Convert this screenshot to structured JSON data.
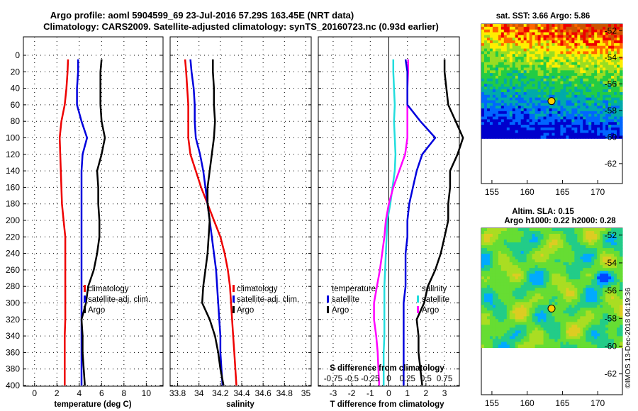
{
  "title": {
    "line1": "Argo profile: aoml 5904599_69 23-Jul-2016 57.29S 163.45E (NRT data)",
    "line2": "Climatology: CARS2009. Satellite-adjusted climatology: synTS_20160723.nc (0.93d earlier)"
  },
  "colors": {
    "climatology": "#ee0000",
    "satellite": "#0000dd",
    "argo": "#000000",
    "salinity_clim": "#ff00ff",
    "salinity_sat": "#22dddd"
  },
  "depth_axis": {
    "ticks": [
      0,
      20,
      40,
      60,
      80,
      100,
      120,
      140,
      160,
      180,
      200,
      220,
      240,
      260,
      280,
      300,
      320,
      340,
      360,
      380,
      400
    ],
    "range": [
      0,
      400
    ]
  },
  "chart_data": [
    {
      "type": "line",
      "name": "temperature",
      "xlabel": "temperature (deg C)",
      "xlim": [
        -1,
        11.5
      ],
      "xticks": [
        0,
        2,
        4,
        6,
        8,
        10
      ],
      "depth": [
        5,
        20,
        40,
        60,
        80,
        100,
        120,
        140,
        160,
        180,
        200,
        220,
        240,
        260,
        280,
        300,
        320,
        340,
        360,
        380,
        400
      ],
      "legend": [
        "climatology",
        "satellite-adj. clim.",
        "Argo"
      ],
      "series": [
        {
          "name": "climatology",
          "values": [
            3.0,
            2.95,
            2.85,
            2.7,
            2.4,
            2.25,
            2.3,
            2.35,
            2.4,
            2.45,
            2.6,
            2.75,
            2.75,
            2.75,
            2.75,
            2.75,
            2.75,
            2.7,
            2.7,
            2.7,
            2.7
          ]
        },
        {
          "name": "satellite-adj. clim.",
          "values": [
            3.9,
            3.9,
            3.8,
            3.8,
            4.2,
            4.7,
            4.3,
            4.2,
            4.2,
            4.2,
            4.2,
            4.2,
            4.2,
            4.2,
            4.2,
            4.2,
            4.2,
            4.2,
            4.2,
            4.2,
            4.2
          ]
        },
        {
          "name": "Argo",
          "values": [
            6.0,
            5.9,
            5.9,
            5.9,
            6.0,
            6.3,
            6.0,
            5.6,
            5.7,
            5.7,
            5.8,
            5.8,
            5.6,
            5.3,
            4.8,
            4.6,
            4.2,
            4.3,
            4.3,
            4.4,
            4.5
          ]
        }
      ]
    },
    {
      "type": "line",
      "name": "salinity",
      "xlabel": "salinity",
      "xlim": [
        33.73,
        35.05
      ],
      "xticks": [
        33.8,
        34,
        34.2,
        34.4,
        34.6,
        34.8,
        35
      ],
      "xtick_labels": [
        "33.8",
        "34",
        "34.2",
        "34.4",
        "34.6",
        "34.8",
        "35"
      ],
      "depth": [
        5,
        20,
        40,
        60,
        80,
        100,
        120,
        140,
        160,
        180,
        200,
        220,
        240,
        260,
        280,
        300,
        320,
        340,
        360,
        380,
        400
      ],
      "legend": [
        "climatology",
        "satellite-adj. clim.",
        "Argo"
      ],
      "series": [
        {
          "name": "climatology",
          "values": [
            33.87,
            33.88,
            33.89,
            33.9,
            33.9,
            33.9,
            33.92,
            33.97,
            34.02,
            34.08,
            34.14,
            34.2,
            34.24,
            34.27,
            34.29,
            34.3,
            34.31,
            34.32,
            34.33,
            34.34,
            34.35
          ]
        },
        {
          "name": "satellite-adj. clim.",
          "values": [
            33.92,
            33.93,
            33.95,
            33.96,
            33.96,
            33.97,
            34.01,
            34.04,
            34.06,
            34.08,
            34.1,
            34.12,
            34.14,
            34.16,
            34.17,
            34.18,
            34.19,
            34.2,
            34.2,
            34.21,
            34.22
          ]
        },
        {
          "name": "Argo",
          "values": [
            34.13,
            34.13,
            34.14,
            34.14,
            34.15,
            34.14,
            34.12,
            34.1,
            34.08,
            34.08,
            34.1,
            34.09,
            34.08,
            34.06,
            34.04,
            34.03,
            34.1,
            34.15,
            34.18,
            34.2,
            34.23
          ]
        }
      ]
    },
    {
      "type": "line",
      "name": "difference",
      "xlabel": "T difference from climatology",
      "xlim": [
        -3.8,
        3.8
      ],
      "xticks": [
        -3,
        -2,
        -1,
        0,
        1,
        2,
        3
      ],
      "top_xlabel": "S difference from climatology",
      "top_xticks": [
        "-0.75",
        "-0.5",
        "-0.25",
        "0",
        "0.25",
        "0.5",
        "0.75"
      ],
      "depth": [
        5,
        20,
        40,
        60,
        80,
        100,
        120,
        140,
        160,
        180,
        200,
        220,
        240,
        260,
        280,
        300,
        320,
        340,
        360,
        380,
        400
      ],
      "legend_left": [
        "temperature",
        "satellite",
        "Argo"
      ],
      "legend_right": [
        "salinity",
        "satellite",
        "Argo"
      ],
      "series": [
        {
          "name": "T satellite",
          "values": [
            0.9,
            1.0,
            1.0,
            1.0,
            1.7,
            2.5,
            1.8,
            1.5,
            1.3,
            1.1,
            1.0,
            1.0,
            0.9,
            0.9,
            0.9,
            0.8,
            0.8,
            0.8,
            0.8,
            0.8,
            0.8
          ]
        },
        {
          "name": "T Argo",
          "values": [
            3.0,
            3.0,
            3.1,
            3.2,
            3.6,
            4.0,
            3.7,
            3.3,
            3.3,
            3.2,
            3.2,
            3.0,
            2.8,
            2.5,
            2.1,
            1.9,
            1.5,
            1.6,
            1.6,
            1.7,
            1.8
          ]
        },
        {
          "name": "S satellite",
          "values": [
            0.06,
            0.06,
            0.07,
            0.08,
            0.07,
            0.08,
            0.09,
            0.08,
            0.05,
            0.02,
            -0.02,
            -0.03,
            -0.04,
            -0.05,
            -0.06,
            -0.06,
            -0.06,
            -0.06,
            -0.07,
            -0.07,
            -0.07
          ]
        },
        {
          "name": "S Argo",
          "values": [
            0.26,
            0.26,
            0.25,
            0.25,
            0.25,
            0.25,
            0.22,
            0.14,
            0.06,
            0.0,
            -0.04,
            -0.06,
            -0.09,
            -0.12,
            -0.16,
            -0.2,
            -0.2,
            -0.17,
            -0.15,
            -0.14,
            -0.13
          ]
        }
      ]
    },
    {
      "type": "heatmap",
      "name": "sst_map",
      "title": "sat. SST: 3.66 Argo: 5.86",
      "xticks": [
        155,
        160,
        165,
        170
      ],
      "yticks": [
        -52,
        -54,
        -56,
        -58,
        -60,
        -62
      ],
      "xlim": [
        153.5,
        173.5
      ],
      "ylim": [
        -63.5,
        -51.5
      ],
      "argo_position": [
        163.45,
        -57.29
      ]
    },
    {
      "type": "heatmap",
      "name": "sla_map",
      "title": "Altim. SLA: 0.15",
      "subtitle": "Argo h1000: 0.22 h2000: 0.28",
      "xticks": [
        155,
        160,
        165,
        170
      ],
      "yticks": [
        -52,
        -54,
        -56,
        -58,
        -60,
        -62
      ],
      "xlim": [
        153.5,
        173.5
      ],
      "ylim": [
        -63.5,
        -51.5
      ],
      "argo_position": [
        163.45,
        -57.29
      ]
    }
  ],
  "credit": "©IMOS 13-Dec-2018 04:19:36"
}
